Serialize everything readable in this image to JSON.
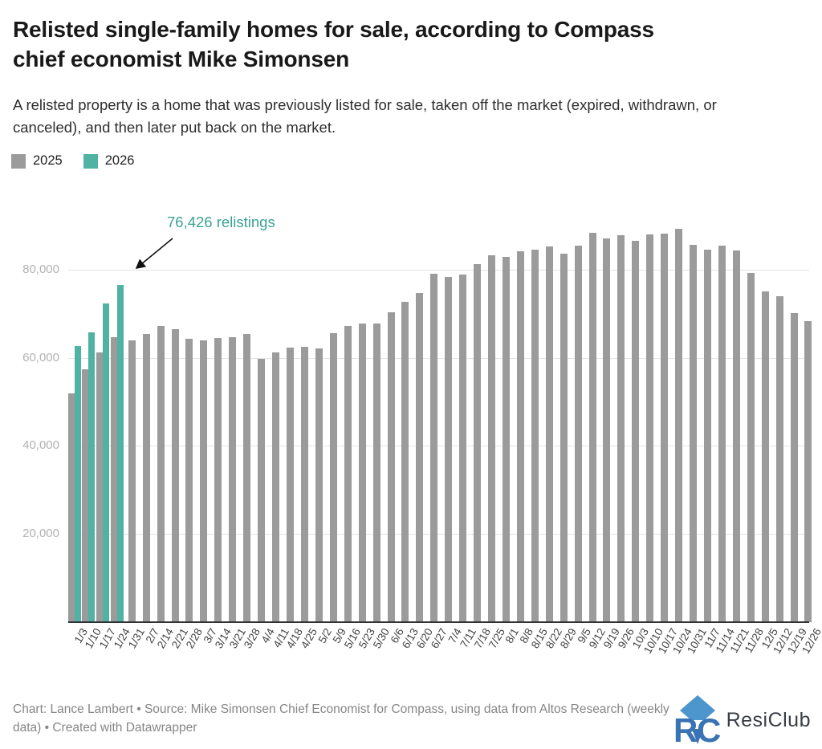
{
  "header": {
    "title": "Relisted single-family homes for sale, according to Compass chief economist Mike Simonsen",
    "description": "A relisted property is a home that was previously listed for sale, taken off the market (expired, withdrawn, or canceled), and then later put back on the market."
  },
  "legend": {
    "items": [
      {
        "label": "2025",
        "color": "#9b9b9b"
      },
      {
        "label": "2026",
        "color": "#4fb2a3"
      }
    ]
  },
  "annotation": {
    "text": "76,426 relistings",
    "color": "#3aa294",
    "points_to_category": "1/24",
    "points_to_series": "2026"
  },
  "chart_data": {
    "type": "bar",
    "title": "Relisted single-family homes for sale",
    "categories": [
      "1/3",
      "1/10",
      "1/17",
      "1/24",
      "1/31",
      "2/7",
      "2/14",
      "2/21",
      "2/28",
      "3/7",
      "3/14",
      "3/21",
      "3/28",
      "4/4",
      "4/11",
      "4/18",
      "4/25",
      "5/2",
      "5/9",
      "5/16",
      "5/23",
      "5/30",
      "6/6",
      "6/13",
      "6/20",
      "6/27",
      "7/4",
      "7/11",
      "7/18",
      "7/25",
      "8/1",
      "8/8",
      "8/15",
      "8/22",
      "8/29",
      "9/5",
      "9/12",
      "9/19",
      "9/26",
      "10/3",
      "10/10",
      "10/17",
      "10/24",
      "10/31",
      "11/7",
      "11/14",
      "11/21",
      "11/28",
      "12/5",
      "12/12",
      "12/19",
      "12/26"
    ],
    "series": [
      {
        "name": "2025",
        "color": "#9b9b9b",
        "values": [
          52000,
          57300,
          61200,
          64600,
          63900,
          65400,
          67200,
          66500,
          64300,
          63900,
          64500,
          64700,
          65400,
          59700,
          61200,
          62300,
          62400,
          62200,
          65500,
          67300,
          67800,
          67800,
          70300,
          72600,
          74700,
          79100,
          78400,
          78900,
          81200,
          83300,
          82900,
          84100,
          84500,
          85300,
          83700,
          85400,
          88300,
          87000,
          87800,
          86500,
          88000,
          88200,
          89300,
          85600,
          84600,
          85500,
          84300,
          79200,
          75100,
          73900,
          70200,
          68400
        ]
      },
      {
        "name": "2026",
        "color": "#4fb2a3",
        "values": [
          62600,
          65700,
          72400,
          76426
        ]
      }
    ],
    "ylim": [
      0,
      90000
    ],
    "yticks": [
      20000,
      40000,
      60000,
      80000
    ],
    "ytick_labels": [
      "20,000",
      "40,000",
      "60,000",
      "80,000"
    ],
    "grid": true,
    "legend_position": "top-left"
  },
  "footer": {
    "credit": "Chart: Lance Lambert • Source: Mike Simonsen Chief Economist for Compass, using data from Altos Research (weekly data) • Created with Datawrapper",
    "logo_text": "ResiClub"
  }
}
